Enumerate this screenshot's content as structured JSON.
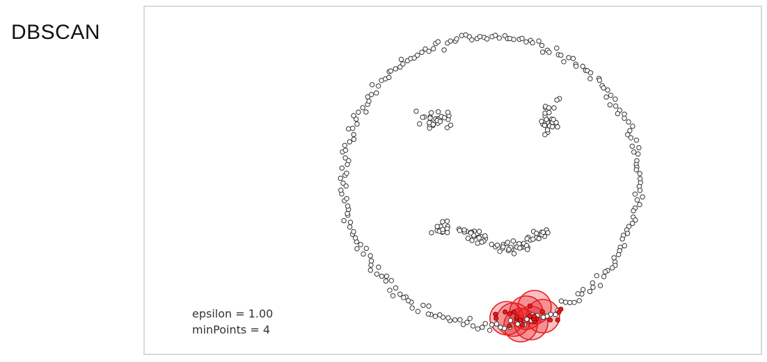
{
  "title": "DBSCAN",
  "params": {
    "epsilon_text": "epsilon = 1.00",
    "minpoints_text": "minPoints = 4",
    "epsilon": 1.0,
    "min_points": 4
  },
  "colors": {
    "point_stroke": "#333333",
    "point_fill": "#ffffff",
    "cluster": "#e8191f",
    "panel_border": "#d9d9d9"
  },
  "chart_data": {
    "type": "scatter",
    "shape": "smiley-face point cloud",
    "clusters_visible": 1,
    "highlighted_cluster_color": "#e8191f"
  }
}
